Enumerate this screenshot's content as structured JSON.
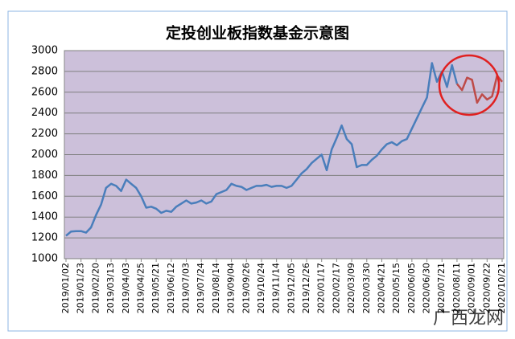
{
  "chart_data": {
    "type": "line",
    "title": "定投创业板指数基金示意图",
    "categories": [
      "2019/01/02",
      null,
      null,
      "2019/01/23",
      null,
      null,
      "2019/02/20",
      null,
      null,
      "2019/03/13",
      null,
      null,
      "2019/04/03",
      null,
      null,
      "2019/04/25",
      null,
      null,
      "2019/05/21",
      null,
      null,
      "2019/06/12",
      null,
      null,
      "2019/07/03",
      null,
      null,
      "2019/07/24",
      null,
      null,
      "2019/08/14",
      null,
      null,
      "2019/09/04",
      null,
      null,
      "2019/09/26",
      null,
      null,
      "2019/10/24",
      null,
      null,
      "2019/11/14",
      null,
      null,
      "2019/12/05",
      null,
      null,
      "2019/12/26",
      null,
      null,
      "2020/01/17",
      null,
      null,
      "2020/02/17",
      null,
      null,
      "2020/03/09",
      null,
      null,
      "2020/03/30",
      null,
      null,
      "2020/04/21",
      null,
      null,
      "2020/05/15",
      null,
      null,
      "2020/06/05",
      null,
      null,
      "2020/06/30",
      null,
      null,
      "2020/07/21",
      null,
      null,
      "2020/08/11",
      null,
      null,
      "2020/09/01",
      null,
      null,
      "2020/09/22",
      null,
      null,
      "2020/10/21"
    ],
    "series": [
      {
        "color": "#4a7ebb",
        "values": [
          1220,
          1260,
          1265,
          1265,
          1250,
          1300,
          1420,
          1520,
          1680,
          1720,
          1700,
          1650,
          1760,
          1720,
          1680,
          1600,
          1490,
          1500,
          1480,
          1440,
          1460,
          1450,
          1500,
          1530,
          1560,
          1530,
          1540,
          1560,
          1530,
          1550,
          1620,
          1640,
          1660,
          1720,
          1700,
          1690,
          1660,
          1680,
          1700,
          1700,
          1710,
          1690,
          1700,
          1700,
          1680,
          1700,
          1760,
          1820,
          1860,
          1920,
          1960,
          2000,
          1850,
          2050,
          2160,
          2280,
          2150,
          2100,
          1880,
          1900,
          1900,
          1950,
          1990,
          2050,
          2100,
          2120,
          2090,
          2130,
          2150,
          2250,
          2350,
          2450,
          2550,
          2880,
          2700,
          2800,
          2650,
          2860,
          2680,
          null,
          null,
          null,
          null,
          null,
          null,
          null,
          null,
          null
        ]
      },
      {
        "color": "#be4b48",
        "values": [
          null,
          null,
          null,
          null,
          null,
          null,
          null,
          null,
          null,
          null,
          null,
          null,
          null,
          null,
          null,
          null,
          null,
          null,
          null,
          null,
          null,
          null,
          null,
          null,
          null,
          null,
          null,
          null,
          null,
          null,
          null,
          null,
          null,
          null,
          null,
          null,
          null,
          null,
          null,
          null,
          null,
          null,
          null,
          null,
          null,
          null,
          null,
          null,
          null,
          null,
          null,
          null,
          null,
          null,
          null,
          null,
          null,
          null,
          null,
          null,
          null,
          null,
          null,
          null,
          null,
          null,
          null,
          null,
          null,
          null,
          null,
          null,
          null,
          null,
          null,
          null,
          null,
          null,
          2680,
          2620,
          2740,
          2720,
          2500,
          2580,
          2530,
          2560,
          2760,
          2700
        ]
      }
    ],
    "ylim": [
      1000,
      3000
    ],
    "yticks": [
      1000,
      1200,
      1400,
      1600,
      1800,
      2000,
      2200,
      2400,
      2600,
      2800,
      3000
    ],
    "grid": true,
    "watermark": "广西龙网"
  }
}
